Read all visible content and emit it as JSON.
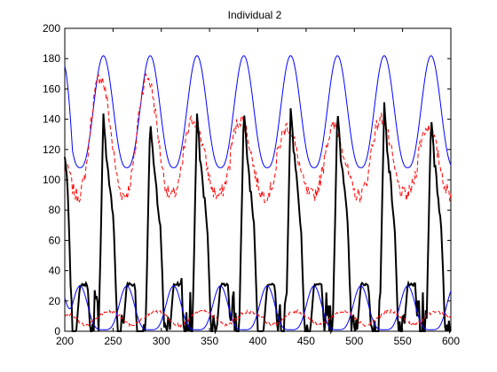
{
  "chart_data": {
    "type": "line",
    "title": "Individual 2",
    "xlabel": "",
    "ylabel": "",
    "xlim": [
      200,
      600
    ],
    "ylim": [
      0,
      200
    ],
    "x_ticks": [
      "200",
      "250",
      "300",
      "350",
      "400",
      "450",
      "500",
      "550",
      "600"
    ],
    "y_ticks": [
      "0",
      "20",
      "40",
      "60",
      "80",
      "100",
      "120",
      "140",
      "160",
      "180",
      "200"
    ],
    "grid": false,
    "legend": "none",
    "cycle": {
      "period": 48.5,
      "first_peak_x": 240,
      "peak_count": 8
    },
    "series": [
      {
        "color": "#0000ff",
        "style": "solid",
        "width": 1,
        "kind": "upper-envelope",
        "start": [
          200,
          175
        ],
        "peak": 182,
        "trough": 108
      },
      {
        "color": "#ff0000",
        "style": "dashed",
        "width": 1,
        "kind": "noisy-mean",
        "start": [
          200,
          105
        ],
        "peaks": [
          163,
          163,
          135,
          135,
          130,
          130,
          135,
          130
        ],
        "trough": 88
      },
      {
        "color": "#000000",
        "style": "solid",
        "width": 2,
        "kind": "pulsed-signal",
        "start": [
          200,
          115
        ],
        "peaks": [
          142,
          138,
          143,
          145,
          149,
          146,
          150,
          142
        ],
        "shoulder": 70,
        "plateau": 31
      },
      {
        "color": "#0000ff",
        "style": "solid",
        "width": 1,
        "kind": "lower-envelope",
        "start": [
          200,
          22
        ],
        "peak": 30,
        "trough": 1
      },
      {
        "color": "#ff0000",
        "style": "dashed",
        "width": 1,
        "kind": "low-noisy",
        "start": [
          200,
          10
        ],
        "level": 13,
        "trough": 4
      }
    ]
  }
}
